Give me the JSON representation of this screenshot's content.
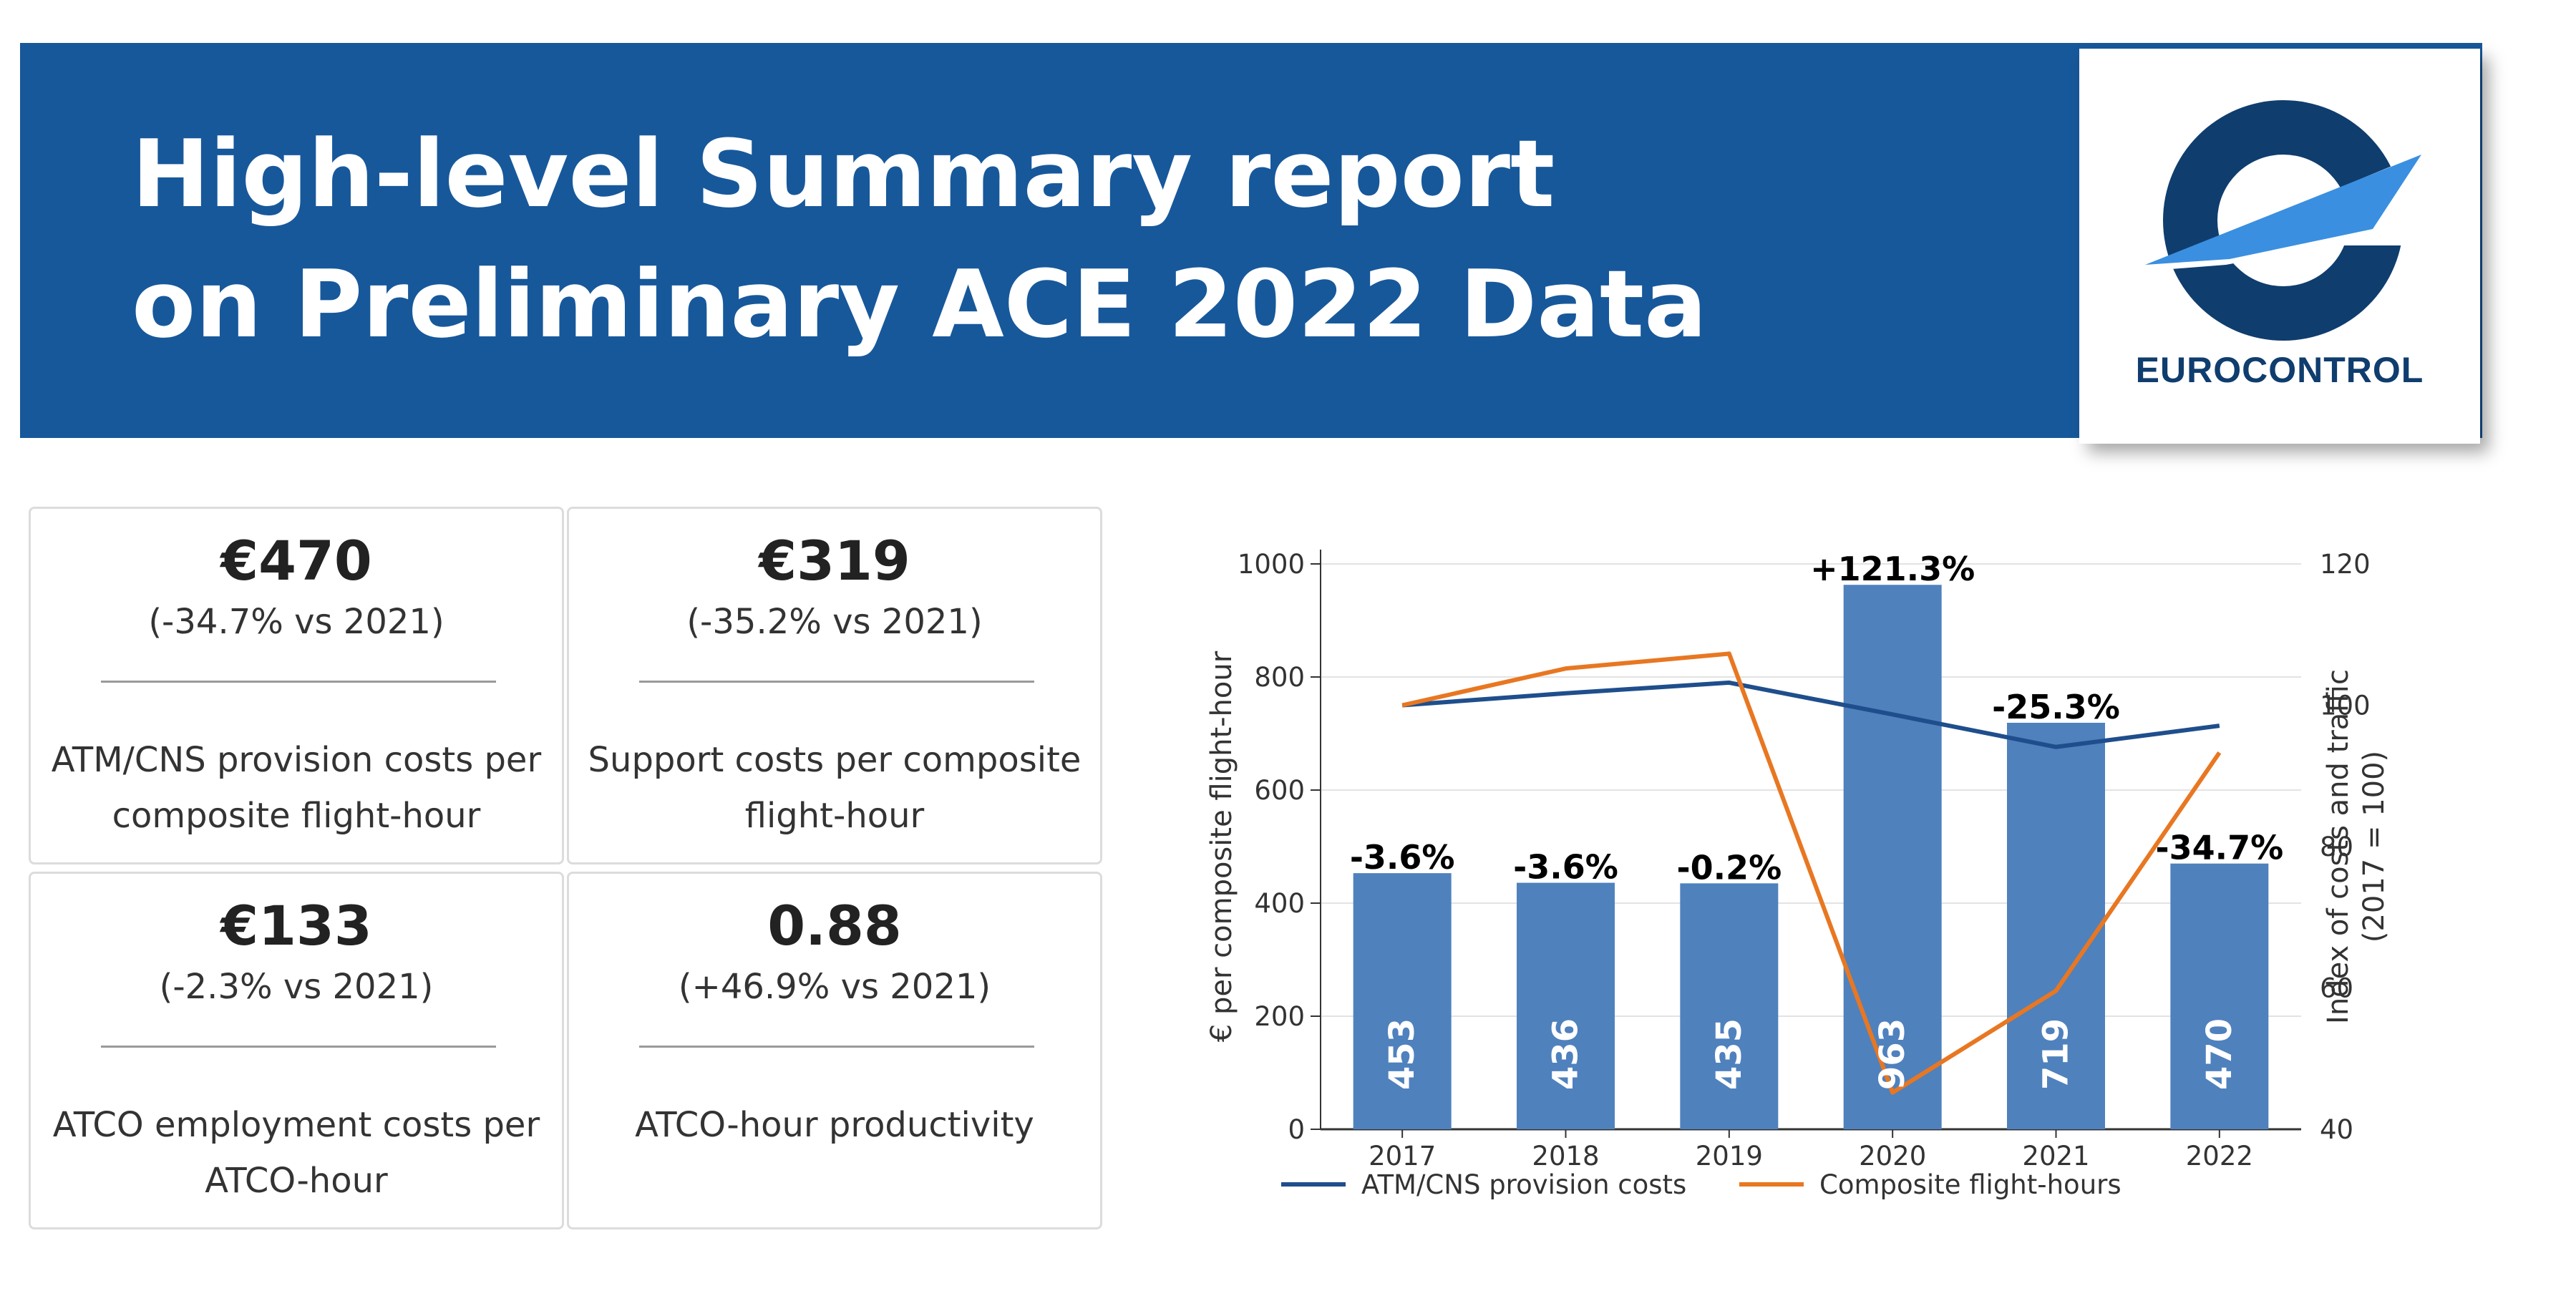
{
  "header": {
    "title_line1": "High-level Summary report",
    "title_line2": "on Preliminary ACE 2022 Data",
    "logo_text": "EUROCONTROL",
    "background": "#17589b"
  },
  "kpis": [
    {
      "value": "€470",
      "change": "(-34.7% vs 2021)",
      "label": "ATM/CNS provision costs per composite flight-hour"
    },
    {
      "value": "€319",
      "change": "(-35.2% vs 2021)",
      "label": "Support costs per composite flight-hour"
    },
    {
      "value": "€133",
      "change": "(-2.3% vs 2021)",
      "label": "ATCO employment costs per ATCO-hour"
    },
    {
      "value": "0.88",
      "change": "(+46.9% vs 2021)",
      "label": "ATCO-hour productivity"
    }
  ],
  "chart_data": {
    "type": "bar",
    "categories": [
      "2017",
      "2018",
      "2019",
      "2020",
      "2021",
      "2022"
    ],
    "values": [
      453,
      436,
      435,
      963,
      719,
      470
    ],
    "bar_labels": [
      "453",
      "436",
      "435",
      "963",
      "719",
      "470"
    ],
    "change_labels": [
      "-3.6%",
      "-3.6%",
      "-0.2%",
      "+121.3%",
      "-25.3%",
      "-34.7%"
    ],
    "ylabel": "€ per composite flight-hour",
    "ylim": [
      0,
      1000
    ],
    "y_ticks": [
      0,
      200,
      400,
      600,
      800,
      1000
    ],
    "y2label_line1": "Index of costs and traffic",
    "y2label_line2": "(2017 = 100)",
    "y2lim": [
      40,
      120
    ],
    "y2_ticks": [
      40,
      60,
      80,
      100,
      120
    ],
    "bar_color": "#4f81bd",
    "grid": true,
    "legend_position": "bottom",
    "series": [
      {
        "name": "ATM/CNS provision costs",
        "axis": "right",
        "color": "#1f4e8c",
        "values": [
          100,
          101.7,
          103.2,
          98.7,
          94.1,
          97.1
        ]
      },
      {
        "name": "Composite flight-hours",
        "axis": "right",
        "color": "#e87722",
        "values": [
          100,
          105.2,
          107.3,
          45.2,
          59.6,
          93.3
        ]
      }
    ]
  }
}
